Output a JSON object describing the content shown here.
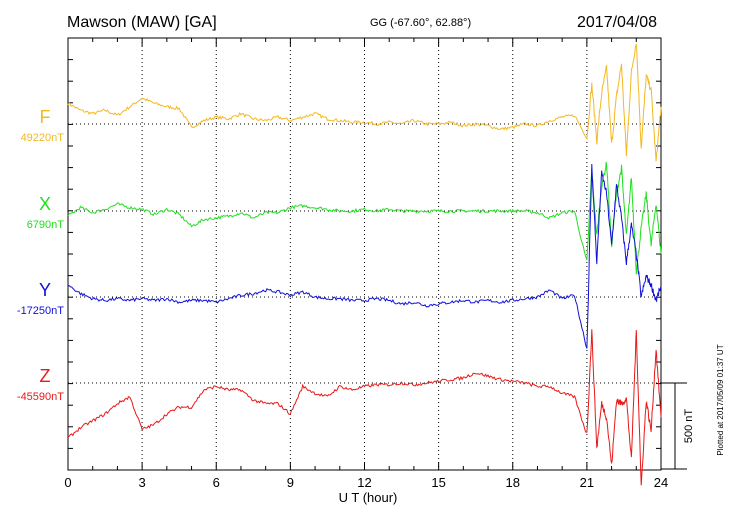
{
  "header": {
    "station": "Mawson (MAW)  [GA]",
    "coords": "GG (-67.60°,  62.88°)",
    "date": "2017/04/08"
  },
  "footer": {
    "plotted": "Plotted at 2017/05/09 01:37 UT"
  },
  "chart_data": {
    "type": "line",
    "xlabel": "U T (hour)",
    "xlim": [
      0,
      24
    ],
    "x_ticks": [
      "0",
      "3",
      "6",
      "9",
      "12",
      "15",
      "18",
      "21",
      "24"
    ],
    "scale_bar": "500 nT",
    "grid": true,
    "x": [
      0,
      0.5,
      1,
      1.5,
      2,
      2.5,
      3,
      3.5,
      4,
      4.5,
      5,
      5.5,
      6,
      6.5,
      7,
      7.5,
      8,
      8.5,
      9,
      9.5,
      10,
      10.5,
      11,
      11.5,
      12,
      12.5,
      13,
      13.5,
      14,
      14.5,
      15,
      15.5,
      16,
      16.5,
      17,
      17.5,
      18,
      18.5,
      19,
      19.5,
      20,
      20.5,
      21,
      21.2,
      21.4,
      21.6,
      21.8,
      22,
      22.2,
      22.4,
      22.6,
      22.8,
      23,
      23.2,
      23.4,
      23.6,
      23.8,
      24
    ],
    "series": [
      {
        "name": "F",
        "color": "#f5b820",
        "baseline": "49220nT",
        "values": [
          120,
          80,
          60,
          80,
          50,
          100,
          150,
          120,
          100,
          90,
          -20,
          20,
          40,
          30,
          60,
          30,
          20,
          40,
          20,
          40,
          60,
          30,
          20,
          10,
          10,
          0,
          10,
          0,
          20,
          0,
          0,
          10,
          -10,
          0,
          -10,
          -30,
          -20,
          0,
          -10,
          20,
          40,
          50,
          -80,
          230,
          -100,
          180,
          330,
          -120,
          160,
          350,
          -180,
          300,
          480,
          -140,
          280,
          200,
          -220,
          100
        ]
      },
      {
        "name": "X",
        "color": "#20e020",
        "baseline": "6790nT",
        "values": [
          -30,
          20,
          -10,
          10,
          40,
          20,
          10,
          -20,
          10,
          -20,
          -90,
          -50,
          -40,
          -30,
          -10,
          -40,
          -10,
          -10,
          20,
          30,
          20,
          10,
          0,
          0,
          10,
          0,
          10,
          0,
          0,
          0,
          0,
          0,
          0,
          0,
          0,
          0,
          0,
          0,
          -10,
          -40,
          -10,
          0,
          -300,
          240,
          -150,
          150,
          280,
          -200,
          100,
          250,
          -150,
          200,
          -350,
          -100,
          100,
          -200,
          50,
          -250
        ]
      },
      {
        "name": "Y",
        "color": "#1010dd",
        "baseline": "-17250nT",
        "values": [
          70,
          20,
          -10,
          -20,
          -10,
          -20,
          -10,
          -20,
          -10,
          -30,
          -20,
          -20,
          -30,
          -10,
          10,
          20,
          40,
          30,
          10,
          30,
          0,
          -10,
          -10,
          -20,
          -20,
          -10,
          -20,
          -40,
          -30,
          -50,
          -40,
          -30,
          -20,
          -30,
          -20,
          -30,
          -20,
          -10,
          0,
          40,
          -10,
          10,
          -300,
          760,
          200,
          720,
          600,
          300,
          650,
          460,
          200,
          420,
          250,
          0,
          120,
          70,
          -20,
          60
        ]
      },
      {
        "name": "Z",
        "color": "#e81818",
        "baseline": "-45590nT",
        "values": [
          -320,
          -260,
          -220,
          -180,
          -120,
          -80,
          -270,
          -240,
          -180,
          -140,
          -140,
          -40,
          -20,
          -40,
          -40,
          -100,
          -120,
          -120,
          -180,
          -20,
          -60,
          -80,
          -20,
          -40,
          -20,
          -10,
          -10,
          0,
          -10,
          0,
          10,
          20,
          30,
          60,
          40,
          20,
          10,
          0,
          -20,
          -20,
          -60,
          -80,
          -300,
          300,
          -380,
          -120,
          -200,
          -480,
          -100,
          -120,
          -90,
          -450,
          300,
          -600,
          -100,
          -280,
          200,
          -200
        ]
      }
    ]
  }
}
